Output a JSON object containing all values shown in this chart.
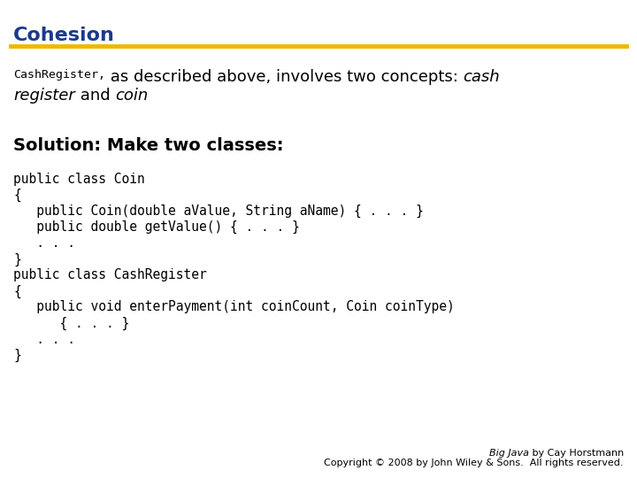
{
  "title": "Cohesion",
  "title_color": "#1B3A8C",
  "title_fontsize": 16,
  "separator_color": "#F0B800",
  "bg_color": "#FFFFFF",
  "code_lines": [
    "public class Coin",
    "{",
    "   public Coin(double aValue, String aName) { . . . }",
    "   public double getValue() { . . . }",
    "   . . .",
    "}",
    "public class CashRegister",
    "{",
    "   public void enterPayment(int coinCount, Coin coinType)",
    "      { . . . }",
    "   . . .",
    "}"
  ],
  "footer_italic": "Big Java",
  "footer_regular": " by Cay Horstmann",
  "footer_line2": "Copyright © 2008 by John Wiley & Sons.  All rights reserved.",
  "footer_fontsize": 8,
  "code_fontsize": 10.5,
  "body_fontsize": 13,
  "solution_fontsize": 14,
  "solution_text": "Solution: Make two classes:"
}
